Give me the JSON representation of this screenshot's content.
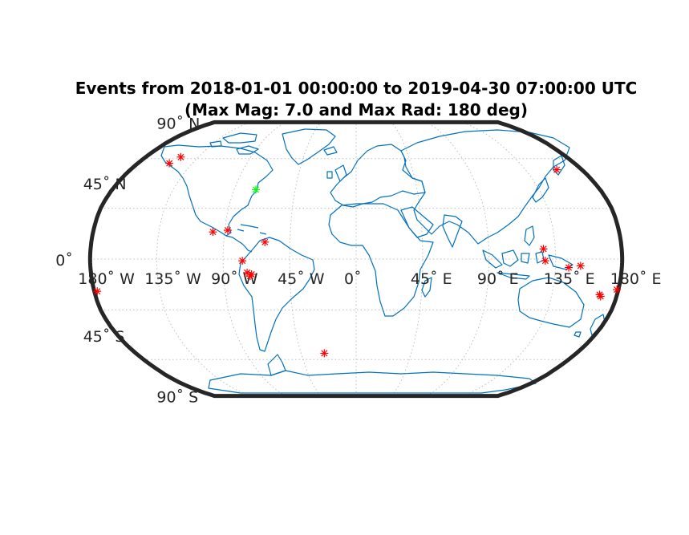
{
  "title": {
    "line1": "Events from 2018-01-01 00:00:00 to 2019-04-30 07:00:00 UTC",
    "line2": "(Max Mag: 7.0 and Max Rad: 180 deg)"
  },
  "lat_ticks": [
    {
      "lat": 90,
      "label": "90˚ N"
    },
    {
      "lat": 45,
      "label": "45˚ N"
    },
    {
      "lat": 0,
      "label": "0˚"
    },
    {
      "lat": -45,
      "label": "45˚ S"
    },
    {
      "lat": -90,
      "label": "90˚ S"
    }
  ],
  "lon_ticks": [
    {
      "lon": -180,
      "label": "180˚ W"
    },
    {
      "lon": -135,
      "label": "135˚ W"
    },
    {
      "lon": -90,
      "label": "90˚ W"
    },
    {
      "lon": -45,
      "label": "45˚ W"
    },
    {
      "lon": 0,
      "label": "0˚"
    },
    {
      "lon": 45,
      "label": "45˚ E"
    },
    {
      "lon": 90,
      "label": "90˚ E"
    },
    {
      "lon": 135,
      "label": "135˚ E"
    },
    {
      "lon": 180,
      "label": "180˚ E"
    }
  ],
  "colors": {
    "event": "#ff0000",
    "station": "#00ff00",
    "coast": "#0072BD",
    "frame": "#262626",
    "grid": "#bdbdbd"
  },
  "projection": "Robinson",
  "station": {
    "lat": 41,
    "lon": -74
  },
  "events": [
    {
      "lat": 57,
      "lon": -154
    },
    {
      "lat": 61,
      "lon": -150
    },
    {
      "lat": 16,
      "lon": -98
    },
    {
      "lat": 17,
      "lon": -88
    },
    {
      "lat": 10,
      "lon": -62
    },
    {
      "lat": -1,
      "lon": -77
    },
    {
      "lat": -8,
      "lon": -74
    },
    {
      "lat": -9,
      "lon": -71
    },
    {
      "lat": -10,
      "lon": -72
    },
    {
      "lat": -19,
      "lon": -178
    },
    {
      "lat": -56,
      "lon": -26
    },
    {
      "lat": 53,
      "lon": 160
    },
    {
      "lat": 6,
      "lon": 127
    },
    {
      "lat": -1,
      "lon": 128
    },
    {
      "lat": -5,
      "lon": 144
    },
    {
      "lat": -4,
      "lon": 152
    },
    {
      "lat": -21,
      "lon": 168
    },
    {
      "lat": -22,
      "lon": 169
    },
    {
      "lat": -18,
      "lon": 179
    }
  ]
}
